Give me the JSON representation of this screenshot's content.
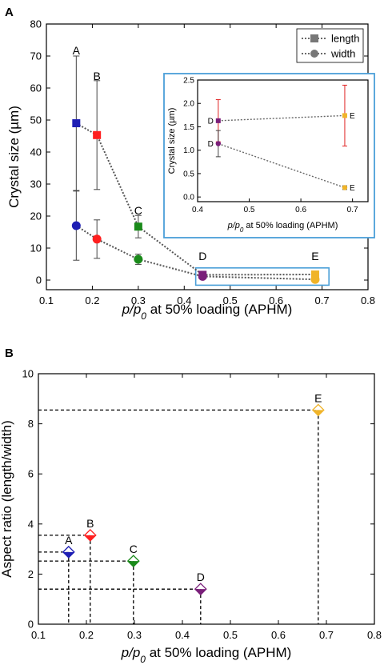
{
  "panel_a_label": "A",
  "panel_b_label": "B",
  "chart_data": [
    {
      "type": "scatter",
      "panel": "A",
      "xlabel": "p/p0 at 50% loading (APHM)",
      "ylabel": "Crystal size (µm)",
      "xlim": [
        0.1,
        0.8
      ],
      "ylim": [
        -3,
        80
      ],
      "x_ticks": [
        "0.1",
        "0.2",
        "0.3",
        "0.4",
        "0.5",
        "0.6",
        "0.7",
        "0.8"
      ],
      "y_ticks": [
        "0",
        "10",
        "20",
        "30",
        "40",
        "50",
        "60",
        "70",
        "80"
      ],
      "legend_position": "top-right",
      "point_labels": [
        "A",
        "B",
        "C",
        "D",
        "E"
      ],
      "x": [
        0.165,
        0.21,
        0.3,
        0.44,
        0.685
      ],
      "colors": [
        "#1f1fb4",
        "#ff1f1f",
        "#1a8a1a",
        "#7a1f7a",
        "#f0b429"
      ],
      "series": [
        {
          "name": "length",
          "marker": "square",
          "values": [
            49,
            45.3,
            16.7,
            1.65,
            1.75
          ],
          "err": [
            21,
            17,
            3.5,
            0.45,
            0.65
          ]
        },
        {
          "name": "width",
          "marker": "circle",
          "values": [
            17,
            12.8,
            6.5,
            1.15,
            0.2
          ],
          "err": [
            10.8,
            6,
            1.6,
            0.3,
            0.05
          ]
        }
      ]
    },
    {
      "type": "scatter",
      "panel": "A-inset",
      "xlabel": "p/p0 at 50% loading (APHM)",
      "ylabel": "Crystal size (µm)",
      "xlim": [
        0.4,
        0.73
      ],
      "ylim": [
        -0.1,
        2.5
      ],
      "x_ticks": [
        "0.4",
        "0.5",
        "0.6",
        "0.7"
      ],
      "y_ticks": [
        "0.0",
        "0.5",
        "1.0",
        "1.5",
        "2.0",
        "2.5"
      ],
      "point_labels": [
        "D",
        "E"
      ],
      "x": [
        0.44,
        0.685
      ],
      "colors": [
        "#7a1f7a",
        "#f0b429"
      ],
      "series": [
        {
          "name": "length",
          "marker": "square",
          "values": [
            1.63,
            1.74
          ],
          "err": [
            0.45,
            0.65
          ]
        },
        {
          "name": "width",
          "marker": "circle",
          "values": [
            1.14,
            0.2
          ],
          "err": [
            0.28,
            0.04
          ]
        }
      ]
    },
    {
      "type": "scatter",
      "panel": "B",
      "xlabel": "p/p0 at 50% loading (APHM)",
      "ylabel": "Aspect ratio (length/width)",
      "xlim": [
        0.1,
        0.8
      ],
      "ylim": [
        0,
        10
      ],
      "x_ticks": [
        "0.1",
        "0.2",
        "0.3",
        "0.4",
        "0.5",
        "0.6",
        "0.7",
        "0.8"
      ],
      "y_ticks": [
        "0",
        "2",
        "4",
        "6",
        "8",
        "10"
      ],
      "point_labels": [
        "A",
        "B",
        "C",
        "D",
        "E"
      ],
      "x": [
        0.163,
        0.208,
        0.298,
        0.438,
        0.683
      ],
      "values": [
        2.88,
        3.55,
        2.52,
        1.4,
        8.55
      ],
      "colors": [
        "#1f1fb4",
        "#ff1f1f",
        "#1a8a1a",
        "#7a1f7a",
        "#f0b429"
      ]
    }
  ]
}
